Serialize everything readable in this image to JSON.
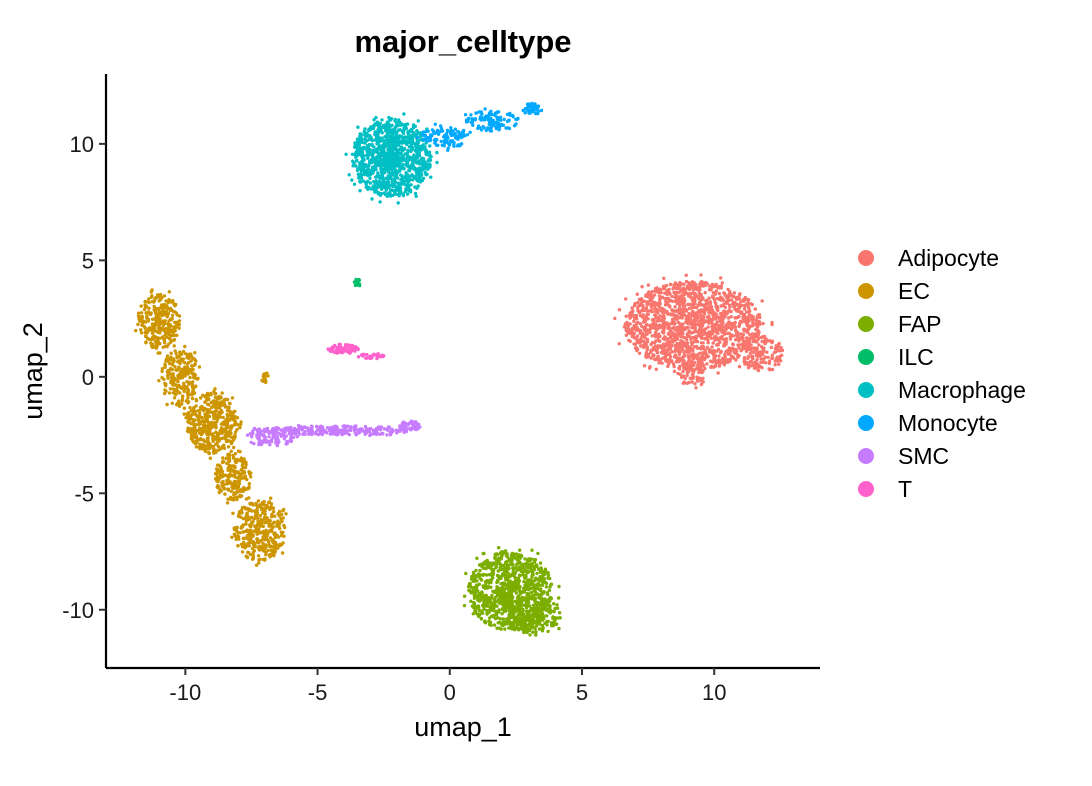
{
  "chart_data": {
    "type": "scatter",
    "title": "major_celltype",
    "xlabel": "umap_1",
    "ylabel": "umap_2",
    "xlim": [
      -13,
      14
    ],
    "ylim": [
      -12.5,
      13
    ],
    "x_ticks": [
      -10,
      -5,
      0,
      5,
      10
    ],
    "y_ticks": [
      -10,
      -5,
      0,
      5,
      10
    ],
    "x_tick_labels": [
      "-10",
      "-5",
      "0",
      "5",
      "10"
    ],
    "y_tick_labels": [
      "-10",
      "-5",
      "0",
      "5",
      "10"
    ],
    "grid": false,
    "legend_position": "right",
    "series": [
      {
        "name": "Adipocyte",
        "color": "#F8766D",
        "clusters": [
          {
            "cx": 9.2,
            "cy": 2.2,
            "rx": 2.6,
            "ry": 1.9,
            "n": 1500
          },
          {
            "cx": 11.8,
            "cy": 1.0,
            "rx": 0.8,
            "ry": 0.8,
            "n": 140
          },
          {
            "cx": 9.2,
            "cy": 0.1,
            "rx": 0.5,
            "ry": 0.6,
            "n": 60
          }
        ]
      },
      {
        "name": "EC",
        "color": "#CD9600",
        "clusters": [
          {
            "cx": -11.0,
            "cy": 2.4,
            "rx": 0.8,
            "ry": 1.2,
            "n": 280
          },
          {
            "cx": -10.2,
            "cy": 0.0,
            "rx": 0.7,
            "ry": 1.3,
            "n": 220
          },
          {
            "cx": -9.0,
            "cy": -2.0,
            "rx": 1.0,
            "ry": 1.3,
            "n": 420
          },
          {
            "cx": -8.2,
            "cy": -4.3,
            "rx": 0.7,
            "ry": 1.0,
            "n": 200
          },
          {
            "cx": -7.2,
            "cy": -6.6,
            "rx": 1.0,
            "ry": 1.3,
            "n": 350
          },
          {
            "cx": -7.0,
            "cy": 0.0,
            "rx": 0.15,
            "ry": 0.3,
            "n": 15
          }
        ]
      },
      {
        "name": "FAP",
        "color": "#7CAE00",
        "clusters": [
          {
            "cx": 2.3,
            "cy": -9.2,
            "rx": 1.6,
            "ry": 1.7,
            "n": 900
          },
          {
            "cx": 3.2,
            "cy": -10.2,
            "rx": 1.0,
            "ry": 0.9,
            "n": 200
          }
        ]
      },
      {
        "name": "ILC",
        "color": "#00BE67",
        "clusters": [
          {
            "cx": -3.5,
            "cy": 4.0,
            "rx": 0.12,
            "ry": 0.22,
            "n": 15
          }
        ]
      },
      {
        "name": "Macrophage",
        "color": "#00BFC4",
        "clusters": [
          {
            "cx": -2.2,
            "cy": 9.4,
            "rx": 1.5,
            "ry": 1.7,
            "n": 1000
          }
        ]
      },
      {
        "name": "Monocyte",
        "color": "#00A9FF",
        "clusters": [
          {
            "cx": -0.2,
            "cy": 10.3,
            "rx": 0.9,
            "ry": 0.5,
            "n": 110
          },
          {
            "cx": 1.6,
            "cy": 11.0,
            "rx": 1.0,
            "ry": 0.45,
            "n": 100
          },
          {
            "cx": 3.1,
            "cy": 11.5,
            "rx": 0.4,
            "ry": 0.25,
            "n": 40
          }
        ]
      },
      {
        "name": "SMC",
        "color": "#C77CFF",
        "clusters": [
          {
            "cx": -4.2,
            "cy": -2.3,
            "rx": 2.9,
            "ry": 0.2,
            "n": 260
          },
          {
            "cx": -6.8,
            "cy": -2.6,
            "rx": 0.9,
            "ry": 0.4,
            "n": 100
          },
          {
            "cx": -1.5,
            "cy": -2.1,
            "rx": 0.4,
            "ry": 0.2,
            "n": 50
          }
        ]
      },
      {
        "name": "T",
        "color": "#FF61CC",
        "clusters": [
          {
            "cx": -4.0,
            "cy": 1.2,
            "rx": 0.6,
            "ry": 0.2,
            "n": 80
          },
          {
            "cx": -2.9,
            "cy": 0.9,
            "rx": 0.5,
            "ry": 0.12,
            "n": 30
          }
        ]
      }
    ]
  }
}
